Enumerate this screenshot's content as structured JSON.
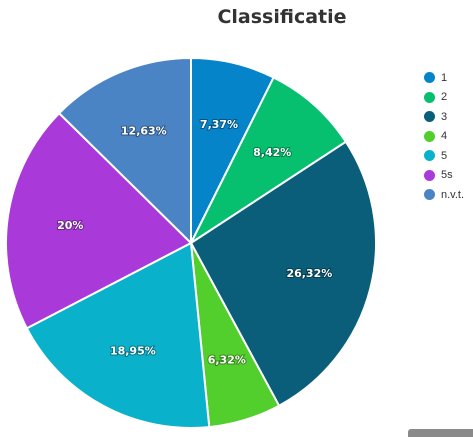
{
  "chart_data": {
    "type": "pie",
    "title": "Classificatie",
    "categories": [
      "1",
      "2",
      "3",
      "4",
      "5",
      "5s",
      "n.v.t."
    ],
    "values": [
      7.37,
      8.42,
      26.32,
      6.32,
      18.95,
      20,
      12.63
    ],
    "data_labels": [
      "7,37%",
      "8,42%",
      "26,32%",
      "6,32%",
      "18,95%",
      "20%",
      "12,63%"
    ],
    "colors": [
      "#0684c9",
      "#06c070",
      "#0a5e7a",
      "#52cf2c",
      "#0ab1cb",
      "#a93ad9",
      "#4b84c4"
    ],
    "legend_position": "right"
  }
}
